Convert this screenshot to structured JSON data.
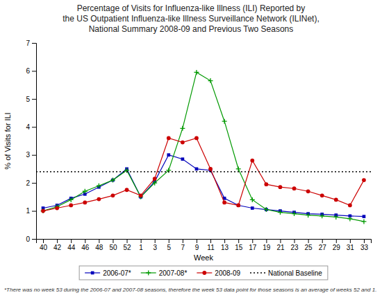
{
  "chart_data": {
    "type": "line",
    "title": "Percentage of Visits for Influenza-like Illness (ILI) Reported by\nthe US Outpatient Influenza-like Illness Surveillance Network (ILINet),\nNational Summary 2008-09 and Previous Two Seasons",
    "x_label": "Week",
    "y_label": "% of Visits for ILI",
    "categories": [
      "40",
      "42",
      "44",
      "46",
      "48",
      "50",
      "52",
      "1",
      "3",
      "5",
      "7",
      "9",
      "11",
      "13",
      "15",
      "17",
      "19",
      "21",
      "23",
      "25",
      "27",
      "29",
      "31",
      "33"
    ],
    "series": [
      {
        "name": "2006-07*",
        "type": "line",
        "color": "#0000bb",
        "marker": "square",
        "line_style": "solid",
        "values": [
          1.1,
          1.2,
          1.45,
          1.6,
          1.85,
          2.1,
          2.5,
          1.5,
          2.05,
          3.0,
          2.85,
          2.5,
          2.45,
          1.45,
          1.2,
          1.1,
          1.05,
          1.0,
          0.95,
          0.9,
          0.88,
          0.85,
          0.82,
          0.8
        ]
      },
      {
        "name": "2007-08*",
        "type": "line",
        "color": "#009900",
        "marker": "plus",
        "line_style": "solid",
        "values": [
          1.0,
          1.15,
          1.4,
          1.7,
          1.9,
          2.1,
          2.45,
          1.5,
          2.0,
          2.45,
          3.95,
          5.95,
          5.65,
          4.2,
          2.5,
          1.4,
          1.05,
          0.95,
          0.9,
          0.85,
          0.82,
          0.78,
          0.72,
          0.62
        ]
      },
      {
        "name": "2008-09",
        "type": "line",
        "color": "#cc0000",
        "marker": "circle",
        "line_style": "solid",
        "values": [
          1.0,
          1.1,
          1.2,
          1.3,
          1.42,
          1.55,
          1.75,
          1.55,
          2.15,
          3.6,
          3.45,
          3.6,
          2.5,
          1.3,
          1.2,
          2.8,
          1.95,
          1.85,
          1.8,
          1.7,
          1.55,
          1.4,
          1.2,
          2.1
        ]
      },
      {
        "name": "National Baseline",
        "type": "hline",
        "color": "#000000",
        "line_style": "dotted",
        "value": 2.4
      }
    ],
    "ylim": [
      0,
      7
    ],
    "yticks": [
      0,
      1,
      2,
      3,
      4,
      5,
      6,
      7
    ],
    "grid": false,
    "legend": "bottom",
    "footnote": "*There was no week 53 during the 2006-07 and 2007-08 seasons, therefore the week 53 data point for those seasons is an average of weeks 52 and 1."
  }
}
